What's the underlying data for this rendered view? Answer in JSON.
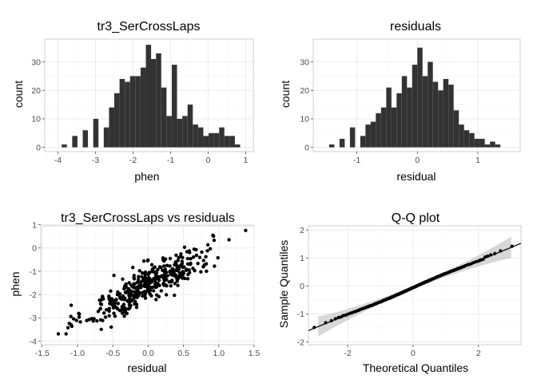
{
  "chart_data": [
    {
      "type": "bar",
      "title": "tr3_SerCrossLaps",
      "xlabel": "phen",
      "ylabel": "count",
      "xlim": [
        -4.35,
        1.2
      ],
      "ylim": [
        -1.5,
        38
      ],
      "xticks": [
        -4,
        -3,
        -2,
        -1,
        0,
        1
      ],
      "yticks": [
        0,
        10,
        20,
        30
      ],
      "grid": true,
      "bin_width": 0.139,
      "bin_centers": [
        -3.83,
        -3.69,
        -3.55,
        -3.41,
        -3.27,
        -3.13,
        -2.99,
        -2.85,
        -2.71,
        -2.57,
        -2.43,
        -2.29,
        -2.15,
        -2.01,
        -1.87,
        -1.73,
        -1.59,
        -1.46,
        -1.32,
        -1.18,
        -1.04,
        -0.9,
        -0.76,
        -0.62,
        -0.48,
        -0.34,
        -0.2,
        -0.06,
        0.08,
        0.22,
        0.36,
        0.5,
        0.64,
        0.78
      ],
      "values": [
        1,
        0,
        4,
        0,
        6,
        0,
        10,
        0,
        7,
        14,
        19,
        24,
        23,
        25,
        25,
        28,
        36,
        31,
        33,
        21,
        11,
        29,
        10,
        11,
        15,
        8,
        7,
        4,
        5,
        5,
        7,
        4,
        4,
        1
      ]
    },
    {
      "type": "bar",
      "title": "residuals",
      "xlabel": "residual",
      "ylabel": "count",
      "xlim": [
        -1.72,
        1.7
      ],
      "ylim": [
        -1.5,
        38
      ],
      "xticks": [
        -1,
        0,
        1
      ],
      "yticks": [
        0,
        10,
        20,
        30
      ],
      "grid": true,
      "bin_width": 0.0857,
      "bin_centers": [
        -1.414,
        -1.329,
        -1.243,
        -1.157,
        -1.071,
        -0.986,
        -0.9,
        -0.814,
        -0.729,
        -0.643,
        -0.557,
        -0.471,
        -0.386,
        -0.3,
        -0.214,
        -0.129,
        -0.043,
        0.043,
        0.129,
        0.214,
        0.3,
        0.386,
        0.471,
        0.557,
        0.643,
        0.729,
        0.814,
        0.9,
        0.986,
        1.071,
        1.157,
        1.243,
        1.329
      ],
      "values": [
        1,
        0,
        3,
        0,
        7,
        0,
        4,
        8,
        9,
        12,
        14,
        21,
        14,
        19,
        25,
        21,
        29,
        35,
        25,
        30,
        23,
        20,
        24,
        22,
        13,
        8,
        6,
        5,
        3,
        3,
        1,
        2,
        1
      ]
    },
    {
      "type": "scatter",
      "title": "tr3_SerCrossLaps vs residuals",
      "xlabel": "residual",
      "ylabel": "phen",
      "xlim": [
        -1.52,
        1.5
      ],
      "ylim": [
        -4.15,
        0.95
      ],
      "xticks": [
        -1.5,
        -1.0,
        -0.5,
        0.0,
        0.5,
        1.0,
        1.5
      ],
      "xtick_labels": [
        "-1.5",
        "-1.0",
        "-0.5",
        "0.0",
        "0.5",
        "1.0",
        "1.5"
      ],
      "yticks": [
        -4,
        -3,
        -2,
        -1,
        0,
        1
      ],
      "grid": true,
      "trend": {
        "slope": 1.55,
        "intercept": -1.55,
        "noise": 0.4,
        "n": 400
      }
    },
    {
      "type": "scatter",
      "title": "Q-Q plot",
      "xlabel": "Theoretical Quantiles",
      "ylabel": "Sample Quantiles",
      "xlim": [
        -3.2,
        3.3
      ],
      "ylim": [
        -2.1,
        2.15
      ],
      "xticks": [
        -2,
        0,
        2
      ],
      "yticks": [
        -2,
        -1,
        0,
        1,
        2
      ],
      "grid": true,
      "reference_line": {
        "slope": 0.48,
        "intercept": -0.06
      },
      "confidence_band": true,
      "n": 400
    }
  ]
}
